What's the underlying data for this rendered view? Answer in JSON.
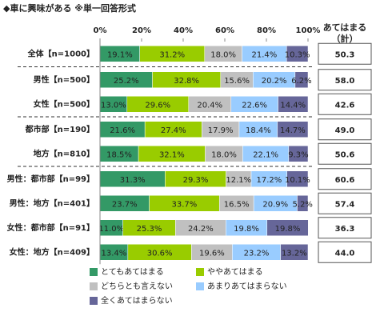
{
  "chart_data": {
    "type": "stacked-bar",
    "title": "◆車に興味がある ※単一回答形式",
    "categories": [
      "全体【n=1000】",
      "男性【n=500】",
      "女性【n=500】",
      "都市部【n=190】",
      "地方【n=810】",
      "男性：都市部【n=99】",
      "男性：地方【n=401】",
      "女性：都市部【n=91】",
      "女性：地方【n=409】"
    ],
    "xlim": [
      0,
      100
    ],
    "xticks": [
      {
        "value": 0,
        "label": "0%"
      },
      {
        "value": 20,
        "label": "20%"
      },
      {
        "value": 40,
        "label": "40%"
      },
      {
        "value": 60,
        "label": "60%"
      },
      {
        "value": 80,
        "label": "80%"
      },
      {
        "value": 100,
        "label": "100%"
      }
    ],
    "series": [
      {
        "name": "とてもあてはまる",
        "color": "#339966",
        "values": [
          19.1,
          25.2,
          13.0,
          21.6,
          18.5,
          31.3,
          23.7,
          11.0,
          13.4
        ],
        "value_labels": [
          "19.1%",
          "25.2%",
          "13.0%",
          "21.6%",
          "18.5%",
          "31.3%",
          "23.7%",
          "11.0%",
          "13.4%"
        ]
      },
      {
        "name": "ややあてはまる",
        "color": "#99cc00",
        "values": [
          31.2,
          32.8,
          29.6,
          27.4,
          32.1,
          29.3,
          33.7,
          25.3,
          30.6
        ],
        "value_labels": [
          "31.2%",
          "32.8%",
          "29.6%",
          "27.4%",
          "32.1%",
          "29.3%",
          "33.7%",
          "25.3%",
          "30.6%"
        ]
      },
      {
        "name": "どちらとも言えない",
        "color": "#c0c0c0",
        "values": [
          18.0,
          15.6,
          20.4,
          17.9,
          18.0,
          12.1,
          16.5,
          24.2,
          19.6
        ],
        "value_labels": [
          "18.0%",
          "15.6%",
          "20.4%",
          "17.9%",
          "18.0%",
          "12.1%",
          "16.5%",
          "24.2%",
          "19.6%"
        ]
      },
      {
        "name": "あまりあてはまらない",
        "color": "#99ccff",
        "values": [
          21.4,
          20.2,
          22.6,
          18.4,
          22.1,
          17.2,
          20.9,
          19.8,
          23.2
        ],
        "value_labels": [
          "21.4%",
          "20.2%",
          "22.6%",
          "18.4%",
          "22.1%",
          "17.2%",
          "20.9%",
          "19.8%",
          "23.2%"
        ]
      },
      {
        "name": "全くあてはまらない",
        "color": "#666699",
        "values": [
          10.3,
          6.2,
          14.4,
          14.7,
          9.3,
          10.1,
          5.2,
          19.8,
          13.2
        ],
        "value_labels": [
          "10.3%",
          "6.2%",
          "14.4%",
          "14.7%",
          "9.3%",
          "10.1%",
          "5.2%",
          "19.8%",
          "13.2%"
        ]
      }
    ],
    "totals": {
      "name": "あてはまる（計）",
      "values": [
        50.3,
        58.0,
        42.6,
        49.0,
        50.6,
        60.6,
        57.4,
        36.3,
        44.0
      ],
      "value_labels": [
        "50.3",
        "58.0",
        "42.6",
        "49.0",
        "50.6",
        "60.6",
        "57.4",
        "36.3",
        "44.0"
      ]
    }
  }
}
